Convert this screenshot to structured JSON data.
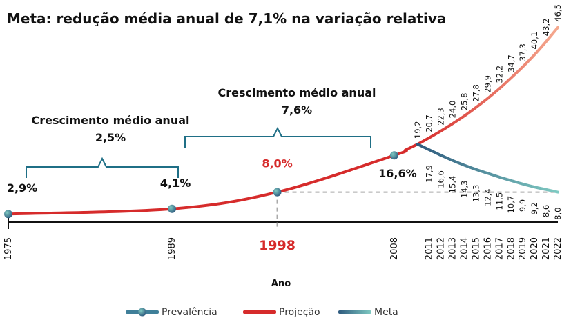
{
  "chart_data": {
    "type": "line",
    "title": "Meta: redução média anual de 7,1% na variação relativa",
    "annotations": [
      "Crescimento médio anual",
      "2,5%",
      "Crescimento médio anual",
      "7,6%"
    ],
    "x_label": "Ano",
    "xlim": [
      1975,
      2022
    ],
    "xticks": [
      1975,
      1989,
      1998,
      2008,
      2011,
      2012,
      2013,
      2014,
      2015,
      2016,
      2017,
      2018,
      2019,
      2020,
      2021,
      2022
    ],
    "highlight_x": 1998,
    "highlight_color": "#d62b2b",
    "ylim": [
      1,
      50
    ],
    "series": [
      {
        "name": "Prevalência",
        "color": "#3f7f99",
        "x": [
          1975,
          1989,
          1998,
          2008
        ],
        "values": [
          2.9,
          4.1,
          8.0,
          16.6
        ],
        "value_labels": [
          "2,9%",
          "4,1%",
          "8,0%",
          "16,6%"
        ]
      },
      {
        "name": "Projeção",
        "color": "#d62b2b",
        "gradient_to": "#f5a98f",
        "x": [
          1975,
          1989,
          1998,
          2008,
          2009,
          2010,
          2011,
          2012,
          2013,
          2014,
          2015,
          2016,
          2017,
          2018,
          2019,
          2020,
          2021,
          2022
        ],
        "values": [
          2.9,
          4.1,
          8.0,
          16.6,
          17.9,
          19.2,
          20.7,
          22.3,
          24.0,
          25.8,
          27.8,
          29.9,
          32.2,
          34.7,
          37.3,
          40.1,
          43.2,
          46.5
        ],
        "value_labels": [
          null,
          null,
          null,
          null,
          null,
          "19,2",
          "20,7",
          "22,3",
          "24,0",
          "25,8",
          "27,8",
          "29,9",
          "32,2",
          "34,7",
          "37,3",
          "40,1",
          "43,2",
          "46,5"
        ]
      },
      {
        "name": "Meta",
        "color": "#2e5a7e",
        "gradient_to": "#7fcac2",
        "x": [
          2010,
          2011,
          2012,
          2013,
          2014,
          2015,
          2016,
          2017,
          2018,
          2019,
          2020,
          2021,
          2022
        ],
        "values": [
          19.2,
          17.9,
          16.6,
          15.4,
          14.3,
          13.3,
          12.4,
          11.5,
          10.7,
          9.9,
          9.2,
          8.6,
          8.0
        ],
        "value_labels": [
          null,
          "17,9",
          "16,6",
          "15,4",
          "14,3",
          "13,3",
          "12,4",
          "11,5",
          "10,7",
          "9,9",
          "9,2",
          "8,6",
          "8,0"
        ]
      }
    ]
  }
}
